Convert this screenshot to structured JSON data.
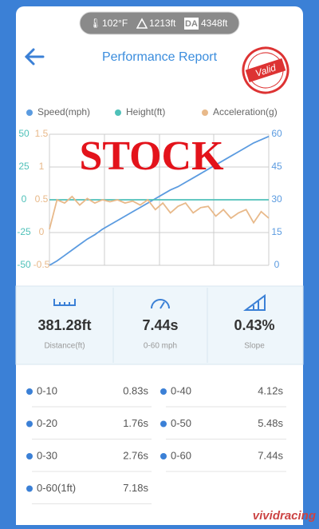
{
  "status_bar": {
    "temperature": "102°F",
    "altitude": "1213ft",
    "da_label": "DA",
    "density_altitude": "4348ft"
  },
  "header": {
    "title": "Performance Report",
    "stamp": "Valid"
  },
  "chart_data": {
    "type": "line",
    "overlay_text": "STOCK",
    "grid": true,
    "series": [
      {
        "name": "Speed(mph)",
        "color": "#5b9be0",
        "axis": "y2",
        "values": [
          0,
          2,
          4.5,
          7,
          9.5,
          12,
          14,
          16.5,
          18.5,
          20.5,
          22.5,
          24.5,
          26.5,
          28.5,
          30.5,
          32.5,
          34.5,
          36,
          38,
          40,
          42,
          44,
          46,
          48,
          50,
          52,
          54,
          56,
          57.5,
          59
        ]
      },
      {
        "name": "Height(ft)",
        "color": "#4fc1b9",
        "axis": "y",
        "values": [
          0,
          0,
          0,
          0,
          0,
          0,
          0,
          0,
          0,
          0,
          0,
          0,
          0,
          0,
          0,
          0,
          0,
          0,
          0,
          0,
          0,
          0,
          0,
          0,
          0,
          0,
          0,
          0,
          0,
          0
        ]
      },
      {
        "name": "Acceleration(g)",
        "color": "#e8b98a",
        "axis": "y3",
        "values": [
          0.05,
          0.5,
          0.45,
          0.55,
          0.42,
          0.52,
          0.45,
          0.5,
          0.47,
          0.5,
          0.45,
          0.48,
          0.42,
          0.5,
          0.35,
          0.45,
          0.3,
          0.4,
          0.45,
          0.3,
          0.38,
          0.4,
          0.25,
          0.35,
          0.22,
          0.3,
          0.35,
          0.15,
          0.32,
          0.22
        ]
      }
    ],
    "ylim": [
      -50,
      50
    ],
    "yticks": [
      50,
      25,
      0,
      -25,
      -50
    ],
    "y2lim": [
      0,
      60
    ],
    "y2ticks": [
      60,
      45,
      30,
      15,
      0
    ],
    "y3lim": [
      -0.5,
      1.5
    ],
    "y3ticks": [
      1.5,
      1,
      0.5,
      0,
      -0.5
    ]
  },
  "stats": [
    {
      "value": "381.28ft",
      "label": "Distance(ft)"
    },
    {
      "value": "7.44s",
      "label": "0-60 mph"
    },
    {
      "value": "0.43%",
      "label": "Slope"
    }
  ],
  "splits": [
    {
      "label": "0-10",
      "time": "0.83s"
    },
    {
      "label": "0-40",
      "time": "4.12s"
    },
    {
      "label": "0-20",
      "time": "1.76s"
    },
    {
      "label": "0-50",
      "time": "5.48s"
    },
    {
      "label": "0-30",
      "time": "2.76s"
    },
    {
      "label": "0-60",
      "time": "7.44s"
    },
    {
      "label": "0-60(1ft)",
      "time": "7.18s"
    }
  ],
  "watermark": "vividracing"
}
